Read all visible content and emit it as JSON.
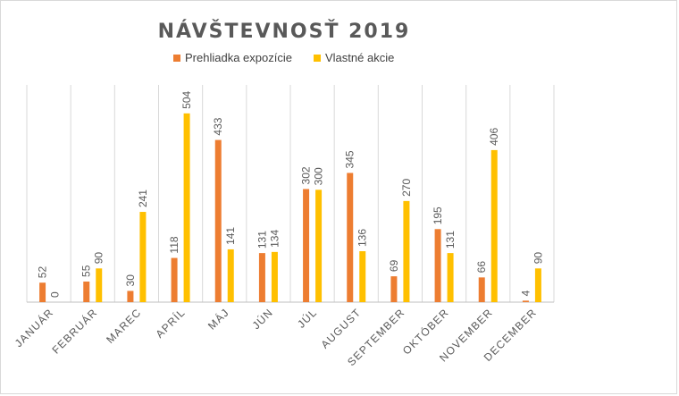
{
  "chart_data": {
    "type": "bar",
    "title": "NÁVŠTEVNOSŤ 2019",
    "xlabel": "",
    "ylabel": "",
    "categories": [
      "JANUÁR",
      "FEBRUÁR",
      "MAREC",
      "APRÍL",
      "MÁJ",
      "JÚN",
      "JÚL",
      "AUGUST",
      "SEPTEMBER",
      "OKTÓBER",
      "NOVEMBER",
      "DECEMBER"
    ],
    "series": [
      {
        "name": "Prehliadka expozície",
        "color": "#ED7D31",
        "values": [
          52,
          55,
          30,
          118,
          433,
          131,
          302,
          345,
          69,
          195,
          66,
          4
        ]
      },
      {
        "name": "Vlastné akcie",
        "color": "#FFC000",
        "values": [
          0,
          90,
          241,
          504,
          141,
          134,
          300,
          136,
          270,
          131,
          406,
          90
        ]
      }
    ],
    "ylim": [
      0,
      580
    ],
    "grid": "vertical category separators",
    "legend_position": "top",
    "data_labels": true
  }
}
